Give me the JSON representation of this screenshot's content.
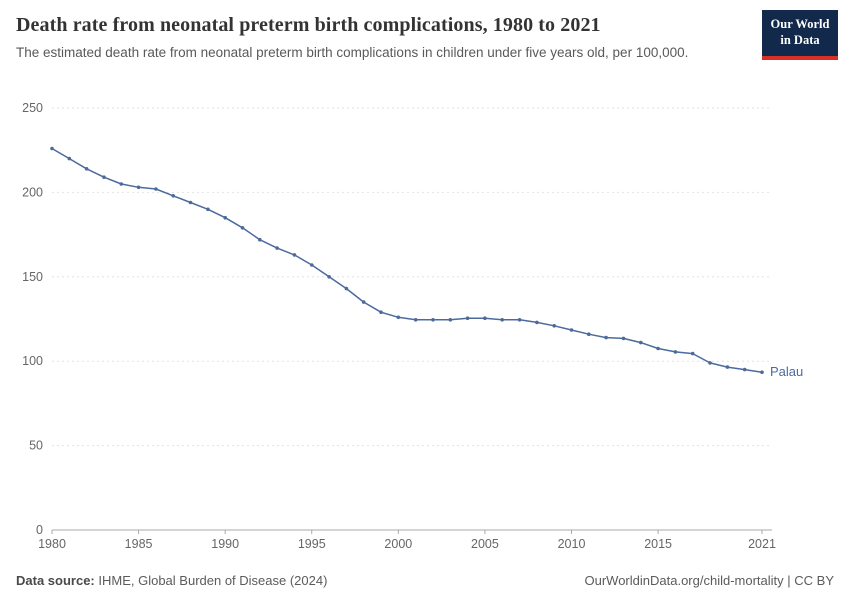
{
  "logo": {
    "line1": "Our World",
    "line2": "in Data",
    "bg": "#12294B",
    "accent": "#D93025"
  },
  "header": {
    "title": "Death rate from neonatal preterm birth complications, 1980 to 2021",
    "subtitle": "The estimated death rate from neonatal preterm birth complications in children under five years old, per 100,000."
  },
  "chart_data": {
    "type": "line",
    "title": "Death rate from neonatal preterm birth complications, 1980 to 2021",
    "subtitle": "The estimated death rate from neonatal preterm birth complications in children under five years old, per 100,000.",
    "xlabel": "",
    "ylabel": "",
    "ylim": [
      0,
      250
    ],
    "yticks": [
      0,
      50,
      100,
      150,
      200,
      250
    ],
    "xticks": [
      1980,
      1985,
      1990,
      1995,
      2000,
      2005,
      2010,
      2015,
      2021
    ],
    "grid": "horizontal-dashed",
    "legend_position": "end-of-line-label",
    "x": [
      1980,
      1981,
      1982,
      1983,
      1984,
      1985,
      1986,
      1987,
      1988,
      1989,
      1990,
      1991,
      1992,
      1993,
      1994,
      1995,
      1996,
      1997,
      1998,
      1999,
      2000,
      2001,
      2002,
      2003,
      2004,
      2005,
      2006,
      2007,
      2008,
      2009,
      2010,
      2011,
      2012,
      2013,
      2014,
      2015,
      2016,
      2017,
      2018,
      2019,
      2020,
      2021
    ],
    "series": [
      {
        "name": "Palau",
        "color": "#4C6A9C",
        "values": [
          226,
          220,
          214,
          209,
          205,
          203,
          202,
          198,
          194,
          190,
          185,
          179,
          172,
          167,
          163,
          157,
          150,
          143,
          135,
          129,
          126,
          124.5,
          124.5,
          124.5,
          125.5,
          125.5,
          124.5,
          124.5,
          123,
          121,
          118.5,
          116,
          114,
          113.5,
          111,
          107.5,
          105.5,
          104.5,
          99,
          96.5,
          95,
          93.5
        ]
      }
    ]
  },
  "footer": {
    "source_label": "Data source:",
    "source": "IHME, Global Burden of Disease (2024)",
    "right": "OurWorldinData.org/child-mortality | CC BY"
  }
}
